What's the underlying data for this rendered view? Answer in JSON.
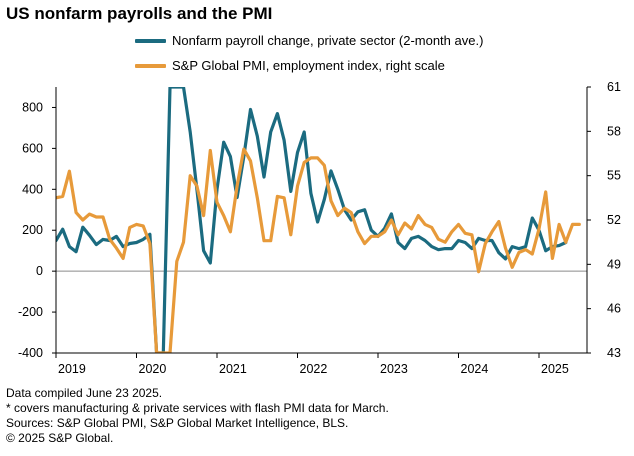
{
  "title": "US nonfarm payrolls and the PMI",
  "colors": {
    "payrolls": "#1b6b80",
    "pmi": "#e79a3a",
    "axis": "#000000",
    "zero": "#8a8a8a"
  },
  "chart_data": {
    "type": "line",
    "title": "US nonfarm payrolls and the PMI",
    "left_axis": {
      "range": [
        -400,
        900
      ],
      "ticks": [
        -400,
        -200,
        0,
        200,
        400,
        600,
        800
      ],
      "labels": [
        "-400",
        "-200",
        "0",
        "200",
        "400",
        "600",
        "800"
      ]
    },
    "right_axis": {
      "range": [
        43,
        61
      ],
      "ticks": [
        43,
        46,
        49,
        52,
        55,
        58,
        61
      ],
      "labels": [
        "43",
        "46",
        "49",
        "52",
        "55",
        "58",
        "61"
      ]
    },
    "x_axis": {
      "range": [
        "2019-01",
        "2025-07"
      ],
      "tick_labels": [
        "2019",
        "2020",
        "2021",
        "2022",
        "2023",
        "2024",
        "2025"
      ]
    },
    "grid": false,
    "series": [
      {
        "name": "Nonfarm payroll change, private sector (2-month ave.)",
        "axis": "left",
        "points": [
          [
            "2019-01",
            150
          ],
          [
            "2019-02",
            205
          ],
          [
            "2019-03",
            120
          ],
          [
            "2019-04",
            95
          ],
          [
            "2019-05",
            215
          ],
          [
            "2019-06",
            175
          ],
          [
            "2019-07",
            130
          ],
          [
            "2019-08",
            155
          ],
          [
            "2019-09",
            150
          ],
          [
            "2019-10",
            170
          ],
          [
            "2019-11",
            120
          ],
          [
            "2019-12",
            135
          ],
          [
            "2020-01",
            140
          ],
          [
            "2020-02",
            155
          ],
          [
            "2020-03",
            180
          ],
          [
            "2020-04",
            -400
          ],
          [
            "2020-05",
            -400
          ],
          [
            "2020-06",
            900
          ],
          [
            "2020-07",
            900
          ],
          [
            "2020-08",
            900
          ],
          [
            "2020-09",
            680
          ],
          [
            "2020-10",
            400
          ],
          [
            "2020-11",
            100
          ],
          [
            "2020-12",
            40
          ],
          [
            "2021-01",
            400
          ],
          [
            "2021-02",
            630
          ],
          [
            "2021-03",
            560
          ],
          [
            "2021-04",
            360
          ],
          [
            "2021-05",
            560
          ],
          [
            "2021-06",
            790
          ],
          [
            "2021-07",
            660
          ],
          [
            "2021-08",
            460
          ],
          [
            "2021-09",
            680
          ],
          [
            "2021-10",
            770
          ],
          [
            "2021-11",
            640
          ],
          [
            "2021-12",
            390
          ],
          [
            "2022-01",
            580
          ],
          [
            "2022-02",
            680
          ],
          [
            "2022-03",
            380
          ],
          [
            "2022-04",
            240
          ],
          [
            "2022-05",
            350
          ],
          [
            "2022-06",
            490
          ],
          [
            "2022-07",
            400
          ],
          [
            "2022-08",
            300
          ],
          [
            "2022-09",
            250
          ],
          [
            "2022-10",
            290
          ],
          [
            "2022-11",
            300
          ],
          [
            "2022-12",
            200
          ],
          [
            "2023-01",
            170
          ],
          [
            "2023-02",
            210
          ],
          [
            "2023-03",
            280
          ],
          [
            "2023-04",
            140
          ],
          [
            "2023-05",
            110
          ],
          [
            "2023-06",
            160
          ],
          [
            "2023-07",
            170
          ],
          [
            "2023-08",
            150
          ],
          [
            "2023-09",
            120
          ],
          [
            "2023-10",
            105
          ],
          [
            "2023-11",
            110
          ],
          [
            "2023-12",
            110
          ],
          [
            "2024-01",
            150
          ],
          [
            "2024-02",
            140
          ],
          [
            "2024-03",
            110
          ],
          [
            "2024-04",
            160
          ],
          [
            "2024-05",
            150
          ],
          [
            "2024-06",
            150
          ],
          [
            "2024-07",
            90
          ],
          [
            "2024-08",
            60
          ],
          [
            "2024-09",
            120
          ],
          [
            "2024-10",
            110
          ],
          [
            "2024-11",
            120
          ],
          [
            "2024-12",
            260
          ],
          [
            "2025-01",
            200
          ],
          [
            "2025-02",
            100
          ],
          [
            "2025-03",
            120
          ],
          [
            "2025-04",
            125
          ],
          [
            "2025-05",
            140
          ]
        ]
      },
      {
        "name": "S&P Global PMI, employment index, right scale",
        "axis": "right",
        "points": [
          [
            "2019-01",
            53.5
          ],
          [
            "2019-02",
            53.6
          ],
          [
            "2019-03",
            55.3
          ],
          [
            "2019-04",
            52.5
          ],
          [
            "2019-05",
            52.0
          ],
          [
            "2019-06",
            52.4
          ],
          [
            "2019-07",
            52.2
          ],
          [
            "2019-08",
            52.2
          ],
          [
            "2019-09",
            50.7
          ],
          [
            "2019-10",
            50.1
          ],
          [
            "2019-11",
            49.4
          ],
          [
            "2019-12",
            51.5
          ],
          [
            "2020-01",
            51.7
          ],
          [
            "2020-02",
            51.6
          ],
          [
            "2020-03",
            50.4
          ],
          [
            "2020-04",
            43
          ],
          [
            "2020-05",
            43
          ],
          [
            "2020-06",
            43
          ],
          [
            "2020-07",
            49.2
          ],
          [
            "2020-08",
            50.5
          ],
          [
            "2020-09",
            55.0
          ],
          [
            "2020-10",
            54.3
          ],
          [
            "2020-11",
            52.3
          ],
          [
            "2020-12",
            56.7
          ],
          [
            "2021-01",
            53.2
          ],
          [
            "2021-02",
            52.3
          ],
          [
            "2021-03",
            51.2
          ],
          [
            "2021-04",
            54.3
          ],
          [
            "2021-05",
            56.8
          ],
          [
            "2021-06",
            56.0
          ],
          [
            "2021-07",
            53.5
          ],
          [
            "2021-08",
            50.6
          ],
          [
            "2021-09",
            50.6
          ],
          [
            "2021-10",
            53.6
          ],
          [
            "2021-11",
            53.5
          ],
          [
            "2021-12",
            51.0
          ],
          [
            "2022-01",
            54.3
          ],
          [
            "2022-02",
            55.9
          ],
          [
            "2022-03",
            56.2
          ],
          [
            "2022-04",
            56.2
          ],
          [
            "2022-05",
            55.7
          ],
          [
            "2022-06",
            53.3
          ],
          [
            "2022-07",
            52.3
          ],
          [
            "2022-08",
            52.8
          ],
          [
            "2022-09",
            52.5
          ],
          [
            "2022-10",
            51.2
          ],
          [
            "2022-11",
            50.4
          ],
          [
            "2022-12",
            50.9
          ],
          [
            "2023-01",
            50.9
          ],
          [
            "2023-02",
            51.2
          ],
          [
            "2023-03",
            52.0
          ],
          [
            "2023-04",
            51.0
          ],
          [
            "2023-05",
            51.8
          ],
          [
            "2023-06",
            51.4
          ],
          [
            "2023-07",
            52.3
          ],
          [
            "2023-08",
            51.7
          ],
          [
            "2023-09",
            51.5
          ],
          [
            "2023-10",
            50.7
          ],
          [
            "2023-11",
            50.5
          ],
          [
            "2023-12",
            51.2
          ],
          [
            "2024-01",
            51.7
          ],
          [
            "2024-02",
            51.1
          ],
          [
            "2024-03",
            51.0
          ],
          [
            "2024-04",
            48.5
          ],
          [
            "2024-05",
            50.4
          ],
          [
            "2024-06",
            51.2
          ],
          [
            "2024-07",
            51.9
          ],
          [
            "2024-08",
            50.1
          ],
          [
            "2024-09",
            48.8
          ],
          [
            "2024-10",
            49.8
          ],
          [
            "2024-11",
            50.0
          ],
          [
            "2024-12",
            49.7
          ],
          [
            "2025-01",
            51.4
          ],
          [
            "2025-02",
            53.9
          ],
          [
            "2025-03",
            49.4
          ],
          [
            "2025-04",
            51.7
          ],
          [
            "2025-05",
            50.5
          ],
          [
            "2025-06",
            51.7
          ],
          [
            "2025-07",
            51.7
          ]
        ]
      }
    ]
  },
  "footer": [
    "Data compiled June 23 2025.",
    "* covers manufacturing & private services with flash PMI data for March.",
    "Sources: S&P Global PMI, S&P Global Market Intelligence, BLS.",
    "© 2025 S&P Global."
  ]
}
